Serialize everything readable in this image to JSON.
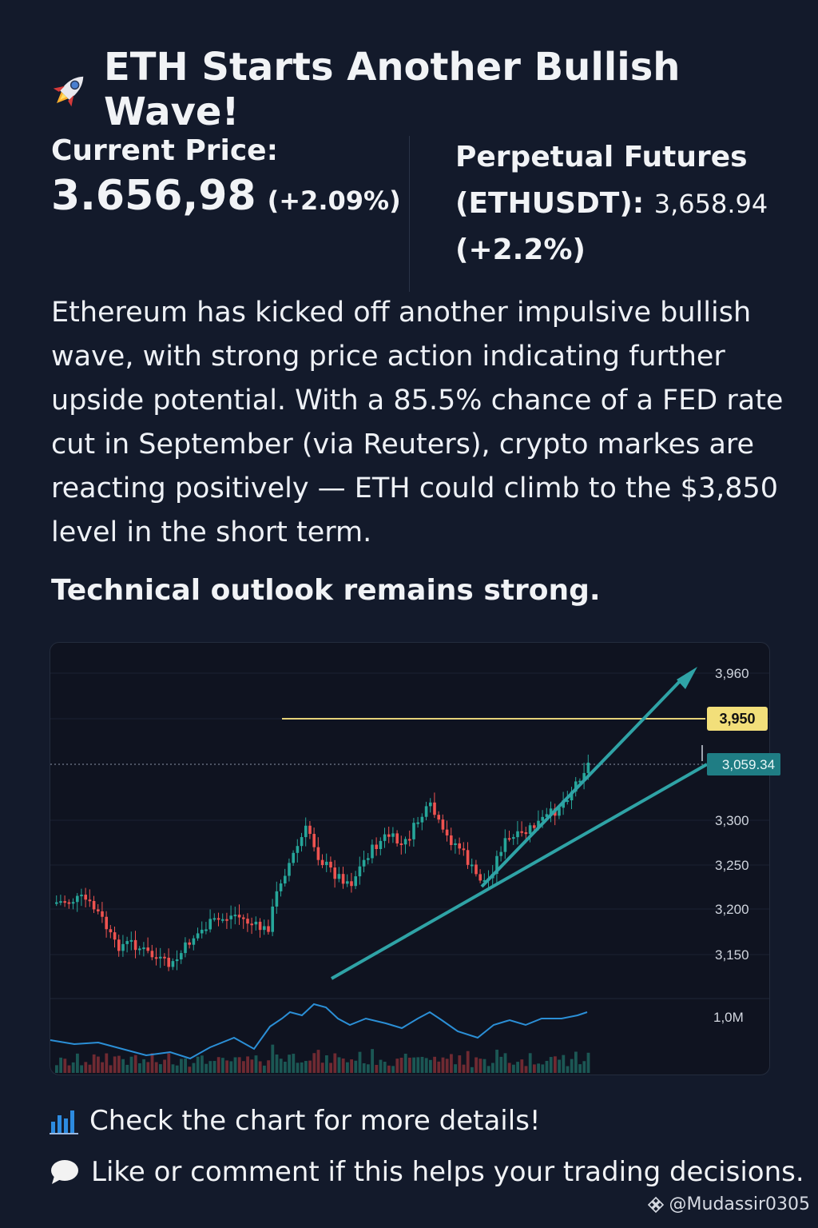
{
  "title": "ETH Starts Another Bullish Wave!",
  "icons": {
    "title": "rocket-icon",
    "footer1": "bar-chart-icon",
    "footer2": "speech-bubble-icon",
    "watermark": "binance-diamond-icon"
  },
  "current_price": {
    "label": "Current Price:",
    "value": "3.656,98",
    "change": "(+2.09%)"
  },
  "futures": {
    "label_line1": "Perpetual Futures",
    "label_line2": "(ETHUSDT):",
    "value": "3,658.94",
    "change": "(+2.2%)"
  },
  "body": "Ethereum has kicked off another impulsive bullish wave, with strong price action indicating further upside potential. With a 85.5% chance of a FED rate cut in September (via Reuters), crypto markes are reacting positively — ETH could climb to the $3,850 level in the short term.",
  "subhead": "Technical outlook remains strong.",
  "footer": {
    "line1": "Check the chart for more details!",
    "line2": "Like or comment if this helps your trading decisions."
  },
  "watermark": "@Mudassir0305",
  "colors": {
    "background": "#131a2b",
    "bull": "#26a69a",
    "bear": "#ef5350",
    "resistance": "#e6d27a",
    "trend": "#2fa3a6",
    "volume_line": "#2b8fd6"
  },
  "chart_data": {
    "type": "candlestick",
    "y_ticks": [
      "3,960",
      "3,950",
      "3,300",
      "3,250",
      "3,200",
      "3,150"
    ],
    "volume_label": "1,0M",
    "resistance_label": "3,950",
    "price_tag": "3,059.34",
    "trend_target_label": "3,960"
  }
}
